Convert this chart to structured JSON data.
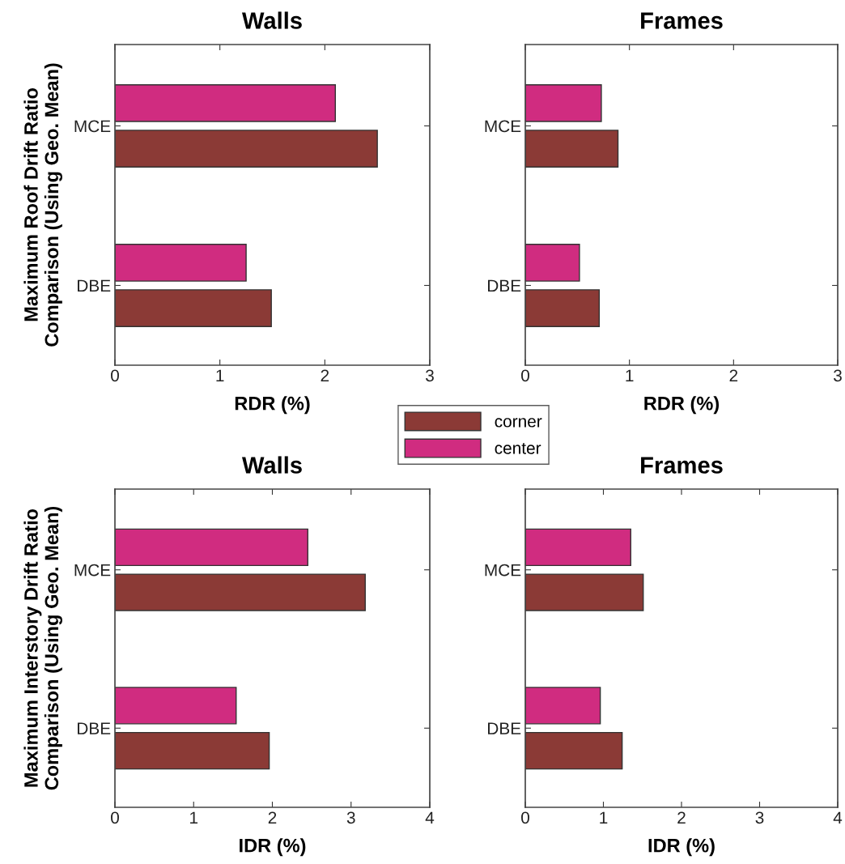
{
  "chart_data": [
    {
      "type": "bar",
      "orientation": "horizontal",
      "title": "Walls",
      "xlabel": "RDR (%)",
      "ylabel": "Maximum Roof Drift Ratio\nComparison (Using Geo. Mean)",
      "categories": [
        "MCE",
        "DBE"
      ],
      "xlim": [
        0,
        3
      ],
      "xticks": [
        0,
        1,
        2,
        3
      ],
      "legend": "bottom right",
      "series": [
        {
          "name": "corner",
          "color": "#8b3a36",
          "values": [
            2.5,
            1.49
          ]
        },
        {
          "name": "center",
          "color": "#d02c80",
          "values": [
            2.1,
            1.25
          ]
        }
      ]
    },
    {
      "type": "bar",
      "orientation": "horizontal",
      "title": "Frames",
      "xlabel": "RDR (%)",
      "categories": [
        "MCE",
        "DBE"
      ],
      "xlim": [
        0,
        3
      ],
      "xticks": [
        0,
        1,
        2,
        3
      ],
      "series": [
        {
          "color": "#8b3a36",
          "values": [
            0.89,
            0.71
          ]
        },
        {
          "color": "#d02c80",
          "values": [
            0.73,
            0.52
          ]
        }
      ]
    },
    {
      "type": "bar",
      "orientation": "horizontal",
      "title": "Walls",
      "xlabel": "IDR (%)",
      "ylabel": "Maximum Interstory Drift Ratio\nComparison (Using Geo. Mean)",
      "categories": [
        "MCE",
        "DBE"
      ],
      "xlim": [
        0,
        4
      ],
      "xticks": [
        0,
        1,
        2,
        3,
        4
      ],
      "series": [
        {
          "color": "#8b3a36",
          "values": [
            3.18,
            1.96
          ]
        },
        {
          "color": "#d02c80",
          "values": [
            2.45,
            1.54
          ]
        }
      ]
    },
    {
      "type": "bar",
      "orientation": "horizontal",
      "title": "Frames",
      "xlabel": "IDR (%)",
      "categories": [
        "MCE",
        "DBE"
      ],
      "xlim": [
        0,
        4
      ],
      "xticks": [
        0,
        1,
        2,
        3,
        4
      ],
      "series": [
        {
          "color": "#8b3a36",
          "values": [
            1.51,
            1.24
          ]
        },
        {
          "color": "#d02c80",
          "values": [
            1.35,
            0.96
          ]
        }
      ]
    }
  ]
}
